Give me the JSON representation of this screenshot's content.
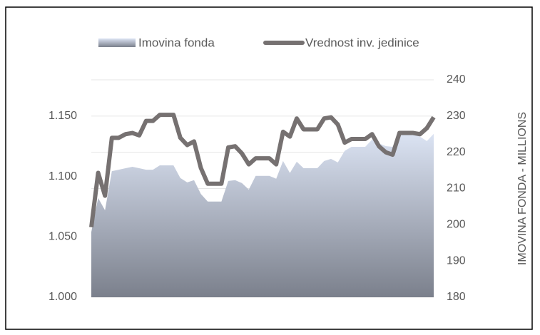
{
  "chart_data": {
    "type": "line",
    "categories": [
      null,
      null,
      null,
      null,
      null,
      null,
      null,
      null,
      null,
      null,
      null,
      null,
      null,
      null,
      null,
      null,
      null,
      null,
      null,
      null,
      null,
      null,
      null,
      null,
      null,
      null,
      null,
      null,
      null,
      null,
      null,
      null,
      null,
      null,
      null,
      null,
      null,
      null,
      null,
      null,
      null,
      null,
      null,
      null,
      null,
      null,
      null,
      null,
      null,
      null,
      null
    ],
    "series": [
      {
        "name": "Imovina fonda",
        "type": "area",
        "axis": "y2",
        "color": "#9aa3b5",
        "values": [
          198,
          207.4,
          204,
          214.8,
          215.2,
          215.6,
          216,
          215.6,
          215.2,
          215.2,
          216.4,
          216.4,
          216.4,
          212.9,
          211.7,
          212.3,
          208.5,
          206.4,
          206.4,
          206.4,
          212.1,
          212.3,
          211.5,
          209.7,
          213.5,
          213.5,
          213.5,
          212.7,
          217.6,
          214.3,
          217.4,
          215.6,
          215.6,
          215.6,
          217.6,
          218.2,
          217.2,
          220.4,
          221.5,
          221.5,
          221.5,
          223.5,
          222.5,
          221.7,
          221.5,
          225.5,
          225.5,
          225.5,
          224.3,
          223.1,
          225.1
        ]
      },
      {
        "name": "Vrednost inv. jedinice",
        "type": "line",
        "axis": "y",
        "color": "#767171",
        "values": [
          1.058,
          1.103,
          1.084,
          1.132,
          1.132,
          1.135,
          1.136,
          1.134,
          1.146,
          1.146,
          1.151,
          1.151,
          1.151,
          1.132,
          1.126,
          1.129,
          1.107,
          1.094,
          1.094,
          1.094,
          1.124,
          1.125,
          1.119,
          1.11,
          1.115,
          1.115,
          1.115,
          1.11,
          1.137,
          1.133,
          1.148,
          1.139,
          1.139,
          1.139,
          1.148,
          1.149,
          1.143,
          1.128,
          1.131,
          1.131,
          1.131,
          1.135,
          1.125,
          1.12,
          1.118,
          1.136,
          1.136,
          1.136,
          1.135,
          1.14,
          1.149
        ]
      }
    ],
    "ylim": [
      1.0,
      1.18
    ],
    "yticks": [
      {
        "value": 1.0,
        "label": "1.000"
      },
      {
        "value": 1.05,
        "label": "1.050"
      },
      {
        "value": 1.1,
        "label": "1.100"
      },
      {
        "value": 1.15,
        "label": "1.150"
      }
    ],
    "y2lim": [
      180,
      240
    ],
    "y2ticks": [
      180,
      190,
      200,
      210,
      220,
      230,
      240
    ],
    "y2label": "IMOVINA FONDA - MILLIONS",
    "grid": true,
    "legend": "top"
  }
}
